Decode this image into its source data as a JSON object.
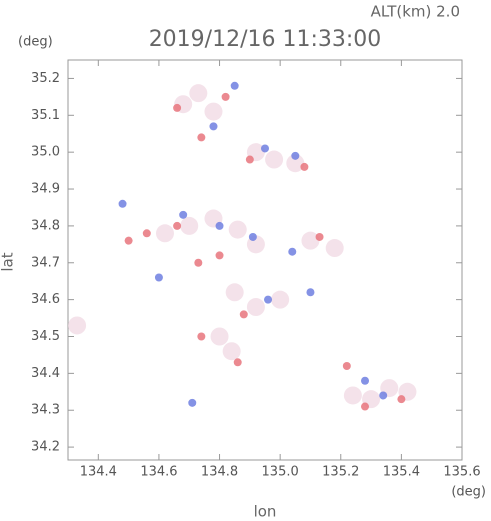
{
  "chart_data": {
    "type": "scatter",
    "title": "2019/12/16 11:33:00",
    "subtitle": "ALT(km) 2.0",
    "x_label": "lon",
    "x_unit": "(deg)",
    "y_label": "lat",
    "y_unit": "(deg)",
    "xlim": [
      134.3,
      135.6
    ],
    "ylim": [
      34.165,
      35.25
    ],
    "xticks": [
      134.4,
      134.6,
      134.8,
      {
        "value": 135,
        "label": "135.0"
      },
      135.2,
      135.4,
      135.6
    ],
    "yticks": [
      34.2,
      34.3,
      34.4,
      34.5,
      34.6,
      34.7,
      34.8,
      34.9,
      {
        "value": 35,
        "label": "35.0"
      },
      35.1,
      35.2
    ],
    "series": [
      {
        "color": "#f2dde6",
        "x": [
          134.68,
          134.73,
          134.78,
          134.92,
          134.98,
          135.05,
          134.62,
          134.7,
          134.78,
          134.86,
          134.92,
          135.1,
          135.18,
          134.85,
          134.92,
          135.0,
          134.8,
          134.84,
          135.24,
          135.3,
          135.36,
          135.42,
          134.33
        ],
        "y": [
          35.13,
          35.16,
          35.11,
          35.0,
          34.98,
          34.97,
          34.78,
          34.8,
          34.82,
          34.79,
          34.75,
          34.76,
          34.74,
          34.62,
          34.58,
          34.6,
          34.5,
          34.46,
          34.34,
          34.33,
          34.36,
          34.35,
          34.53
        ]
      },
      {
        "color": "#e8747c",
        "x": [
          134.66,
          134.74,
          134.82,
          134.9,
          135.08,
          134.56,
          134.66,
          134.73,
          134.8,
          135.13,
          134.88,
          134.74,
          134.86,
          135.22,
          135.28,
          135.4,
          134.5
        ],
        "y": [
          35.12,
          35.04,
          35.15,
          34.98,
          34.96,
          34.78,
          34.8,
          34.7,
          34.72,
          34.77,
          34.56,
          34.5,
          34.43,
          34.42,
          34.31,
          34.33,
          34.76
        ]
      },
      {
        "color": "#6f7fe0",
        "x": [
          134.85,
          134.78,
          134.95,
          135.05,
          134.8,
          134.68,
          134.91,
          135.04,
          134.96,
          135.34,
          135.28,
          134.71,
          134.48,
          134.6,
          135.1
        ],
        "y": [
          35.18,
          35.07,
          35.01,
          34.99,
          34.8,
          34.83,
          34.77,
          34.73,
          34.6,
          34.34,
          34.38,
          34.32,
          34.86,
          34.66,
          34.62
        ]
      }
    ]
  }
}
